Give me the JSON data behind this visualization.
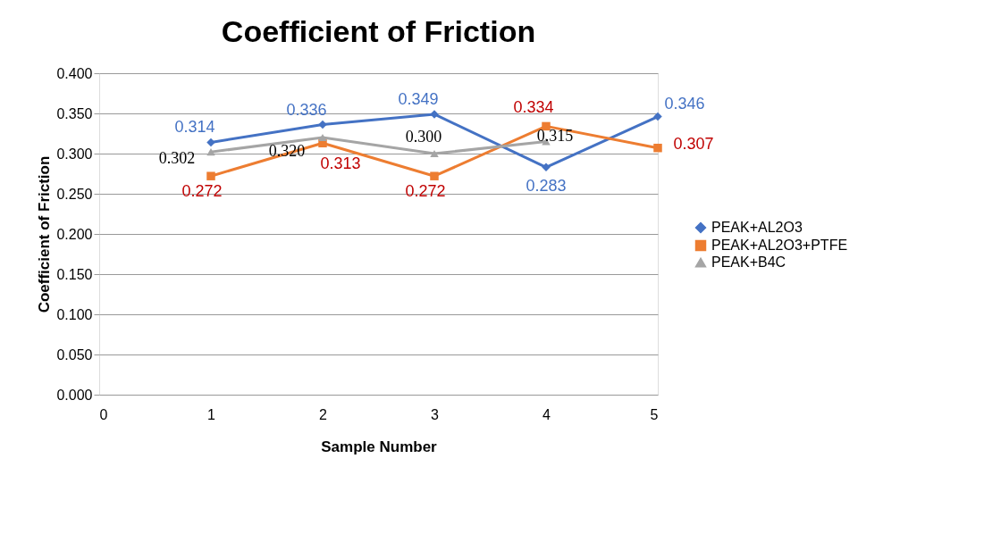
{
  "chart_data": {
    "type": "line",
    "title": "Coefficient of Friction",
    "xlabel": "Sample Number",
    "ylabel": "Coefficient of Friction",
    "x": [
      1,
      2,
      3,
      4,
      5
    ],
    "xlim": [
      0,
      5
    ],
    "xticks": [
      0,
      1,
      2,
      3,
      4,
      5
    ],
    "ylim": [
      0,
      0.4
    ],
    "yticks": [
      {
        "value": 0,
        "label": "0.000"
      },
      {
        "value": 0.05,
        "label": "0.050"
      },
      {
        "value": 0.1,
        "label": "0.100"
      },
      {
        "value": 0.15,
        "label": "0.150"
      },
      {
        "value": 0.2,
        "label": "0.200"
      },
      {
        "value": 0.25,
        "label": "0.250"
      },
      {
        "value": 0.3,
        "label": "0.300"
      },
      {
        "value": 0.35,
        "label": "0.350"
      },
      {
        "value": 0.4,
        "label": "0.400"
      }
    ],
    "grid": "y",
    "legend": "right",
    "line_style": "solid",
    "series": [
      {
        "name": "PEAK+AL2O3",
        "color": "#4472c4",
        "marker": "diamond",
        "values": [
          0.314,
          0.336,
          0.349,
          0.283,
          0.346
        ],
        "value_labels": [
          "0.314",
          "0.336",
          "0.349",
          "0.283",
          "0.346"
        ]
      },
      {
        "name": "PEAK+AL2O3+PTFE",
        "color": "#ed7d31",
        "marker": "square",
        "values": [
          0.272,
          0.313,
          0.272,
          0.334,
          0.307
        ],
        "value_labels": [
          "0.272",
          "0.313",
          "0.272",
          "0.334",
          "0.307"
        ]
      },
      {
        "name": "PEAK+B4C",
        "color": "#a5a5a5",
        "marker": "triangle",
        "x": [
          1,
          2,
          3,
          4
        ],
        "values": [
          0.302,
          0.32,
          0.3,
          0.315
        ],
        "value_labels": [
          "0.302",
          "0.320",
          "0.300",
          "0.315"
        ]
      }
    ]
  }
}
